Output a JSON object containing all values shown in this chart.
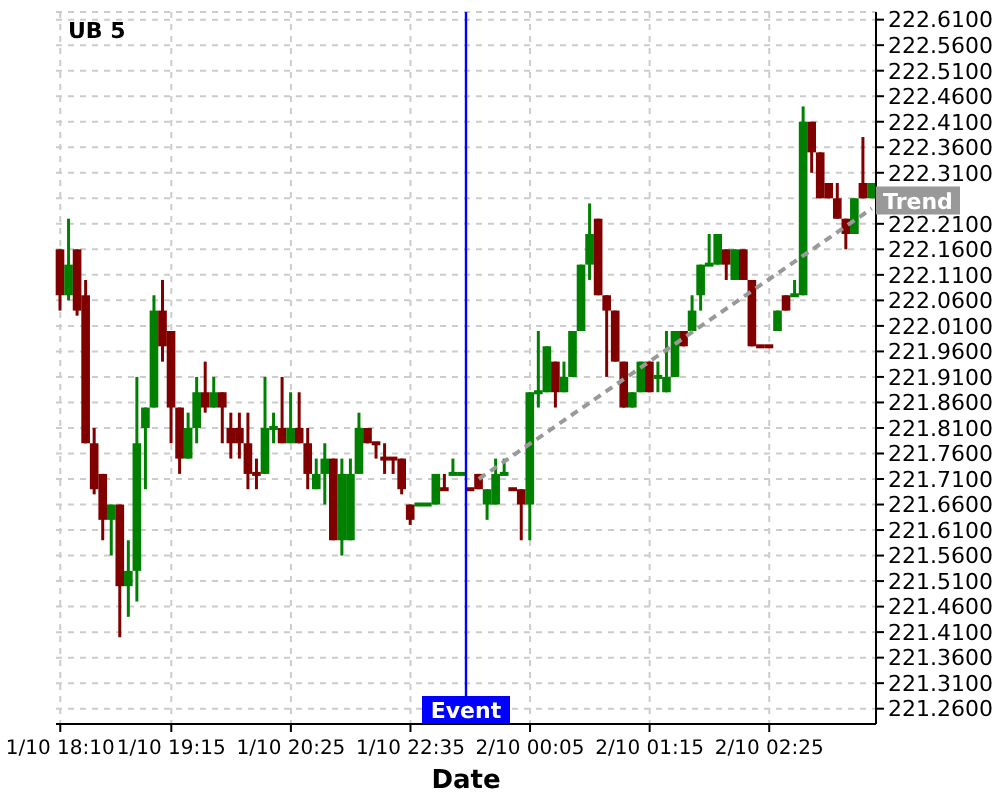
{
  "chart_data": {
    "type": "candlestick",
    "title": "UB 5",
    "xlabel": "Date",
    "categories": [
      "1/10 18:10",
      null,
      null,
      null,
      null,
      null,
      null,
      null,
      null,
      null,
      null,
      null,
      null,
      "1/10 19:15",
      null,
      null,
      null,
      null,
      null,
      null,
      null,
      null,
      null,
      null,
      null,
      null,
      null,
      "1/10 20:25",
      null,
      null,
      null,
      null,
      null,
      null,
      null,
      null,
      null,
      null,
      null,
      null,
      null,
      "1/10 22:35",
      null,
      null,
      null,
      null,
      null,
      null,
      null,
      null,
      null,
      null,
      null,
      null,
      null,
      "2/10 00:05",
      null,
      null,
      null,
      null,
      null,
      null,
      null,
      null,
      null,
      null,
      null,
      null,
      null,
      "2/10 01:15",
      null,
      null,
      null,
      null,
      null,
      null,
      null,
      null,
      null,
      null,
      null,
      null,
      null,
      "2/10 02:25",
      null,
      null,
      null,
      null,
      null,
      null,
      null,
      null,
      null,
      null,
      null,
      null
    ],
    "ohlc": [
      [
        222.16,
        222.16,
        222.04,
        222.07
      ],
      [
        222.07,
        222.22,
        222.06,
        222.13
      ],
      [
        222.16,
        222.16,
        222.03,
        222.04
      ],
      [
        222.07,
        222.1,
        221.78,
        221.78
      ],
      [
        221.78,
        221.81,
        221.68,
        221.69
      ],
      [
        221.72,
        221.72,
        221.59,
        221.63
      ],
      [
        221.63,
        221.66,
        221.56,
        221.66
      ],
      [
        221.66,
        221.66,
        221.4,
        221.5
      ],
      [
        221.5,
        221.59,
        221.44,
        221.53
      ],
      [
        221.53,
        221.91,
        221.47,
        221.78
      ],
      [
        221.81,
        221.85,
        221.69,
        221.85
      ],
      [
        221.85,
        222.07,
        221.85,
        222.04
      ],
      [
        222.04,
        222.1,
        221.94,
        221.97
      ],
      [
        222.0,
        222.0,
        221.78,
        221.85
      ],
      [
        221.85,
        221.85,
        221.72,
        221.75
      ],
      [
        221.75,
        221.84,
        221.75,
        221.81
      ],
      [
        221.81,
        221.91,
        221.78,
        221.88
      ],
      [
        221.88,
        221.94,
        221.84,
        221.85
      ],
      [
        221.85,
        221.91,
        221.85,
        221.88
      ],
      [
        221.88,
        221.88,
        221.78,
        221.85
      ],
      [
        221.81,
        221.84,
        221.75,
        221.78
      ],
      [
        221.81,
        221.84,
        221.75,
        221.78
      ],
      [
        221.78,
        221.84,
        221.69,
        221.72
      ],
      [
        221.72,
        221.75,
        221.69,
        221.72
      ],
      [
        221.72,
        221.91,
        221.72,
        221.81
      ],
      [
        221.81,
        221.84,
        221.78,
        221.81
      ],
      [
        221.81,
        221.91,
        221.78,
        221.78
      ],
      [
        221.78,
        221.88,
        221.78,
        221.81
      ],
      [
        221.81,
        221.88,
        221.78,
        221.78
      ],
      [
        221.78,
        221.81,
        221.69,
        221.72
      ],
      [
        221.69,
        221.75,
        221.69,
        221.72
      ],
      [
        221.72,
        221.78,
        221.66,
        221.75
      ],
      [
        221.75,
        221.75,
        221.59,
        221.59
      ],
      [
        221.59,
        221.75,
        221.56,
        221.72
      ],
      [
        221.59,
        221.75,
        221.59,
        221.72
      ],
      [
        221.72,
        221.84,
        221.72,
        221.81
      ],
      [
        221.81,
        221.81,
        221.78,
        221.78
      ],
      [
        221.78,
        221.78,
        221.75,
        221.78
      ],
      [
        221.75,
        221.78,
        221.72,
        221.75
      ],
      [
        221.75,
        221.75,
        221.72,
        221.75
      ],
      [
        221.75,
        221.75,
        221.68,
        221.69
      ],
      [
        221.66,
        221.66,
        221.62,
        221.63
      ],
      [
        221.66,
        221.66,
        221.66,
        221.66
      ],
      [
        221.66,
        221.66,
        221.66,
        221.66
      ],
      [
        221.66,
        221.72,
        221.66,
        221.72
      ],
      [
        221.69,
        221.72,
        221.69,
        221.69
      ],
      [
        221.72,
        221.75,
        221.72,
        221.72
      ],
      [
        221.72,
        221.72,
        221.72,
        221.72
      ],
      [
        221.69,
        221.69,
        221.69,
        221.69
      ],
      [
        221.72,
        221.72,
        221.69,
        221.69
      ],
      [
        221.66,
        221.69,
        221.63,
        221.69
      ],
      [
        221.66,
        221.75,
        221.66,
        221.72
      ],
      [
        221.72,
        221.75,
        221.72,
        221.72
      ],
      [
        221.69,
        221.69,
        221.69,
        221.69
      ],
      [
        221.69,
        221.69,
        221.59,
        221.66
      ],
      [
        221.66,
        221.88,
        221.59,
        221.88
      ],
      [
        221.88,
        222.0,
        221.85,
        221.88
      ],
      [
        221.88,
        221.97,
        221.88,
        221.97
      ],
      [
        221.94,
        221.94,
        221.85,
        221.88
      ],
      [
        221.88,
        221.94,
        221.88,
        221.91
      ],
      [
        221.91,
        222.0,
        221.91,
        222.0
      ],
      [
        222.0,
        222.13,
        222.0,
        222.13
      ],
      [
        222.13,
        222.25,
        222.1,
        222.19
      ],
      [
        222.22,
        222.22,
        222.07,
        222.07
      ],
      [
        222.07,
        222.07,
        221.91,
        222.04
      ],
      [
        222.04,
        222.04,
        221.94,
        221.94
      ],
      [
        221.94,
        221.94,
        221.85,
        221.85
      ],
      [
        221.85,
        221.88,
        221.85,
        221.88
      ],
      [
        221.88,
        221.94,
        221.88,
        221.94
      ],
      [
        221.94,
        221.94,
        221.88,
        221.88
      ],
      [
        221.91,
        221.94,
        221.88,
        221.91
      ],
      [
        221.88,
        222.0,
        221.88,
        221.91
      ],
      [
        221.91,
        222.0,
        221.91,
        222.0
      ],
      [
        222.0,
        222.0,
        221.97,
        221.97
      ],
      [
        222.0,
        222.07,
        222.0,
        222.04
      ],
      [
        222.07,
        222.13,
        222.04,
        222.13
      ],
      [
        222.13,
        222.19,
        222.13,
        222.13
      ],
      [
        222.13,
        222.19,
        222.13,
        222.19
      ],
      [
        222.16,
        222.16,
        222.1,
        222.13
      ],
      [
        222.1,
        222.16,
        222.1,
        222.16
      ],
      [
        222.16,
        222.16,
        222.1,
        222.1
      ],
      [
        222.1,
        222.1,
        221.97,
        221.97
      ],
      [
        221.97,
        221.97,
        221.97,
        221.97
      ],
      [
        221.97,
        221.97,
        221.97,
        221.97
      ],
      [
        222.0,
        222.04,
        222.0,
        222.04
      ],
      [
        222.07,
        222.07,
        222.04,
        222.04
      ],
      [
        222.07,
        222.1,
        222.07,
        222.07
      ],
      [
        222.07,
        222.44,
        222.07,
        222.41
      ],
      [
        222.41,
        222.41,
        222.31,
        222.35
      ],
      [
        222.35,
        222.35,
        222.26,
        222.26
      ],
      [
        222.29,
        222.29,
        222.26,
        222.26
      ],
      [
        222.26,
        222.29,
        222.22,
        222.22
      ],
      [
        222.22,
        222.22,
        222.16,
        222.19
      ],
      [
        222.19,
        222.26,
        222.19,
        222.26
      ],
      [
        222.29,
        222.38,
        222.26,
        222.26
      ],
      [
        222.26,
        222.29,
        222.26,
        222.29
      ]
    ],
    "colors": [
      "#800000",
      "#008000",
      "#800000",
      "#800000",
      "#800000",
      "#800000",
      "#008000",
      "#800000",
      "#008000",
      "#008000",
      "#008000",
      "#008000",
      "#800000",
      "#800000",
      "#800000",
      "#008000",
      "#008000",
      "#800000",
      "#008000",
      "#800000",
      "#800000",
      "#800000",
      "#800000",
      "#800000",
      "#008000",
      "#008000",
      "#800000",
      "#008000",
      "#800000",
      "#800000",
      "#008000",
      "#008000",
      "#800000",
      "#008000",
      "#008000",
      "#008000",
      "#800000",
      "#800000",
      "#800000",
      "#800000",
      "#800000",
      "#800000",
      "#008000",
      "#008000",
      "#008000",
      "#800000",
      "#008000",
      "#008000",
      "#800000",
      "#800000",
      "#008000",
      "#008000",
      "#008000",
      "#800000",
      "#800000",
      "#008000",
      "#008000",
      "#008000",
      "#800000",
      "#008000",
      "#008000",
      "#008000",
      "#008000",
      "#800000",
      "#800000",
      "#800000",
      "#800000",
      "#008000",
      "#008000",
      "#800000",
      "#008000",
      "#008000",
      "#008000",
      "#800000",
      "#008000",
      "#008000",
      "#008000",
      "#008000",
      "#800000",
      "#008000",
      "#800000",
      "#800000",
      "#800000",
      "#800000",
      "#008000",
      "#800000",
      "#008000",
      "#008000",
      "#800000",
      "#800000",
      "#800000",
      "#800000",
      "#800000",
      "#008000",
      "#800000",
      "#008000"
    ],
    "series": [
      {
        "type": "line",
        "name": "Trend",
        "color": "#999999",
        "line_style": "dashed",
        "values": [
          null,
          null,
          null,
          null,
          null,
          null,
          null,
          null,
          null,
          null,
          null,
          null,
          null,
          null,
          null,
          null,
          null,
          null,
          null,
          null,
          null,
          null,
          null,
          null,
          null,
          null,
          null,
          null,
          null,
          null,
          null,
          null,
          null,
          null,
          null,
          null,
          null,
          null,
          null,
          null,
          null,
          null,
          null,
          null,
          null,
          null,
          null,
          null,
          null,
          221.71,
          null,
          null,
          null,
          null,
          null,
          null,
          null,
          null,
          null,
          null,
          null,
          null,
          null,
          null,
          null,
          null,
          null,
          null,
          null,
          null,
          null,
          null,
          null,
          null,
          null,
          null,
          null,
          null,
          null,
          null,
          null,
          null,
          null,
          null,
          null,
          null,
          null,
          null,
          null,
          null,
          null,
          null,
          null,
          null,
          null,
          222.24
        ]
      }
    ],
    "ylim": [
      221.23,
      222.625
    ],
    "yticks": [
      {
        "value": 221.26,
        "label": "221.2600"
      },
      {
        "value": 221.31,
        "label": "221.3100"
      },
      {
        "value": 221.36,
        "label": "221.3600"
      },
      {
        "value": 221.41,
        "label": "221.4100"
      },
      {
        "value": 221.46,
        "label": "221.4600"
      },
      {
        "value": 221.51,
        "label": "221.5100"
      },
      {
        "value": 221.56,
        "label": "221.5600"
      },
      {
        "value": 221.61,
        "label": "221.6100"
      },
      {
        "value": 221.66,
        "label": "221.6600"
      },
      {
        "value": 221.71,
        "label": "221.7100"
      },
      {
        "value": 221.76,
        "label": "221.7600"
      },
      {
        "value": 221.81,
        "label": "221.8100"
      },
      {
        "value": 221.86,
        "label": "221.8600"
      },
      {
        "value": 221.91,
        "label": "221.9100"
      },
      {
        "value": 221.96,
        "label": "221.9600"
      },
      {
        "value": 222.01,
        "label": "222.0100"
      },
      {
        "value": 222.06,
        "label": "222.0600"
      },
      {
        "value": 222.11,
        "label": "222.1100"
      },
      {
        "value": 222.16,
        "label": "222.1600"
      },
      {
        "value": 222.21,
        "label": "222.2100"
      },
      {
        "value": 222.26,
        "label": null
      },
      {
        "value": 222.31,
        "label": "222.3100"
      },
      {
        "value": 222.36,
        "label": "222.3600"
      },
      {
        "value": 222.41,
        "label": "222.4100"
      },
      {
        "value": 222.46,
        "label": "222.4600"
      },
      {
        "value": 222.51,
        "label": "222.5100"
      },
      {
        "value": 222.56,
        "label": "222.5600"
      },
      {
        "value": 222.61,
        "label": "222.6100"
      }
    ],
    "grid": true,
    "annotations": [
      "Event"
    ]
  }
}
